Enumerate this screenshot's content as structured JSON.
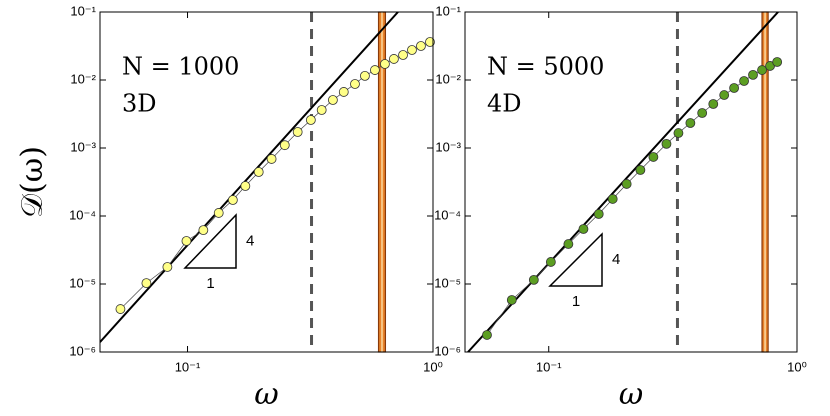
{
  "chart_data": [
    {
      "type": "scatter",
      "xlabel": "ω",
      "ylabel": "𝒟(ω)",
      "annotations": [
        "N = 1000",
        "3D"
      ],
      "log_x": true,
      "log_y": true,
      "xlim": [
        0.044,
        1
      ],
      "ylim": [
        1e-06,
        0.1
      ],
      "xticks": [
        {
          "value": 0.1,
          "label": "10⁻¹"
        },
        {
          "value": 1,
          "label": "10⁰"
        }
      ],
      "yticks": [
        {
          "value": 1e-06,
          "label": "10⁻⁶"
        },
        {
          "value": 1e-05,
          "label": "10⁻⁵"
        },
        {
          "value": 0.0001,
          "label": "10⁻⁴"
        },
        {
          "value": 0.001,
          "label": "10⁻³"
        },
        {
          "value": 0.01,
          "label": "10⁻²"
        },
        {
          "value": 0.1,
          "label": "10⁻¹"
        }
      ],
      "x": [
        0.0533,
        0.068,
        0.0828,
        0.099,
        0.116,
        0.134,
        0.153,
        0.172,
        0.195,
        0.22,
        0.249,
        0.281,
        0.318,
        0.352,
        0.391,
        0.433,
        0.481,
        0.528,
        0.58,
        0.637,
        0.693,
        0.755,
        0.821,
        0.893,
        0.972
      ],
      "values": [
        4.28e-06,
        1.03e-05,
        1.78e-05,
        4.29e-05,
        6.2e-05,
        0.000111,
        0.000172,
        0.000276,
        0.000444,
        0.00069,
        0.0011,
        0.00172,
        0.00258,
        0.00362,
        0.00508,
        0.00667,
        0.00873,
        0.0115,
        0.014,
        0.0172,
        0.0204,
        0.0233,
        0.0276,
        0.0316,
        0.0362
      ],
      "color": "#ffff88",
      "fit_line": {
        "x": [
          0.044,
          0.72
        ],
        "values": [
          1.4e-06,
          0.1
        ],
        "color": "#000000"
      },
      "dashed_line_x": 0.32,
      "band_x": [
        0.6,
        0.64
      ],
      "band_color": "#e8822a",
      "slope_triangle": {
        "rise": "4",
        "run": "1"
      }
    },
    {
      "type": "scatter",
      "xlabel": "ω",
      "annotations": [
        "N = 5000",
        "4D"
      ],
      "log_x": true,
      "log_y": true,
      "xlim": [
        0.046,
        1
      ],
      "ylim": [
        1e-06,
        0.1
      ],
      "xticks": [
        {
          "value": 0.1,
          "label": "10⁻¹"
        },
        {
          "value": 1,
          "label": "10⁰"
        }
      ],
      "yticks": [
        {
          "value": 1e-06,
          "label": "10⁻⁶"
        },
        {
          "value": 1e-05,
          "label": "10⁻⁵"
        },
        {
          "value": 0.0001,
          "label": "10⁻⁴"
        },
        {
          "value": 0.001,
          "label": "10⁻³"
        },
        {
          "value": 0.01,
          "label": "10⁻²"
        },
        {
          "value": 0.1,
          "label": "10⁻¹"
        }
      ],
      "x": [
        0.0564,
        0.071,
        0.0871,
        0.102,
        0.12,
        0.138,
        0.159,
        0.181,
        0.206,
        0.234,
        0.264,
        0.298,
        0.333,
        0.372,
        0.415,
        0.46,
        0.509,
        0.558,
        0.612,
        0.665,
        0.723,
        0.779,
        0.832
      ],
      "values": [
        1.78e-06,
        5.82e-06,
        1.15e-05,
        2.11e-05,
        3.87e-05,
        6.44e-05,
        0.000107,
        0.000178,
        0.000296,
        0.000475,
        0.000738,
        0.00115,
        0.00166,
        0.00233,
        0.00327,
        0.00444,
        0.00601,
        0.00762,
        0.00966,
        0.0119,
        0.014,
        0.0161,
        0.0184
      ],
      "color": "#5c9e22",
      "fit_line": {
        "x": [
          0.0473,
          0.839
        ],
        "values": [
          1e-06,
          0.1
        ],
        "color": "#000000"
      },
      "dashed_line_x": 0.33,
      "band_x": [
        0.723,
        0.765
      ],
      "band_color": "#e8822a",
      "slope_triangle": {
        "rise": "4",
        "run": "1"
      }
    }
  ]
}
